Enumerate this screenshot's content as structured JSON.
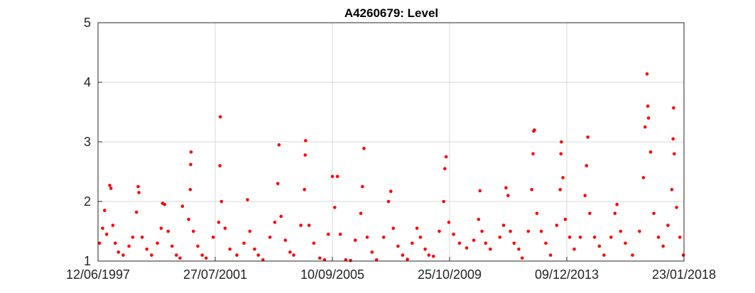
{
  "chart_data": {
    "type": "scatter",
    "title": "A4260679: Level",
    "xlabel": "",
    "ylabel": "",
    "marker_color": "#ff0000",
    "grid": true,
    "xlim": [
      "1997-06-12",
      "2018-01-23"
    ],
    "ylim": [
      1,
      5
    ],
    "xticks": [
      "12/06/1997",
      "27/07/2001",
      "10/09/2005",
      "25/10/2009",
      "09/12/2013",
      "23/01/2018"
    ],
    "xtick_dates": [
      "1997-06-12",
      "2001-07-27",
      "2005-09-10",
      "2009-10-25",
      "2013-12-09",
      "2018-01-23"
    ],
    "yticks": [
      1,
      2,
      3,
      4,
      5
    ],
    "series": [
      {
        "points": [
          [
            "1997-07-01",
            1.3
          ],
          [
            "1997-08-10",
            1.55
          ],
          [
            "1997-09-05",
            1.85
          ],
          [
            "1997-10-01",
            1.45
          ],
          [
            "1997-11-10",
            2.27
          ],
          [
            "1997-11-25",
            2.22
          ],
          [
            "1997-12-20",
            1.6
          ],
          [
            "1998-01-20",
            1.3
          ],
          [
            "1998-03-01",
            1.15
          ],
          [
            "1998-05-01",
            1.1
          ],
          [
            "1998-07-15",
            1.25
          ],
          [
            "1998-09-01",
            1.4
          ],
          [
            "1998-10-20",
            1.82
          ],
          [
            "1998-11-10",
            2.25
          ],
          [
            "1998-11-20",
            2.15
          ],
          [
            "1999-01-01",
            1.4
          ],
          [
            "1999-03-01",
            1.2
          ],
          [
            "1999-05-01",
            1.1
          ],
          [
            "1999-07-15",
            1.3
          ],
          [
            "1999-09-01",
            1.55
          ],
          [
            "1999-09-20",
            1.97
          ],
          [
            "1999-10-15",
            1.95
          ],
          [
            "1999-12-01",
            1.5
          ],
          [
            "2000-01-20",
            1.25
          ],
          [
            "2000-03-15",
            1.1
          ],
          [
            "2000-05-01",
            1.05
          ],
          [
            "2000-06-01",
            1.92
          ],
          [
            "2000-08-20",
            1.7
          ],
          [
            "2000-09-10",
            2.2
          ],
          [
            "2000-09-15",
            2.62
          ],
          [
            "2000-09-20",
            2.83
          ],
          [
            "2000-10-20",
            1.5
          ],
          [
            "2000-12-15",
            1.25
          ],
          [
            "2001-02-10",
            1.1
          ],
          [
            "2001-04-01",
            1.05
          ],
          [
            "2001-07-01",
            1.4
          ],
          [
            "2001-09-10",
            1.65
          ],
          [
            "2001-09-25",
            2.6
          ],
          [
            "2001-10-01",
            3.42
          ],
          [
            "2001-10-15",
            2.0
          ],
          [
            "2001-12-01",
            1.55
          ],
          [
            "2002-02-01",
            1.2
          ],
          [
            "2002-05-01",
            1.1
          ],
          [
            "2002-08-01",
            1.3
          ],
          [
            "2002-09-15",
            2.03
          ],
          [
            "2002-10-15",
            1.5
          ],
          [
            "2002-12-15",
            1.2
          ],
          [
            "2003-02-01",
            1.1
          ],
          [
            "2003-04-01",
            1.02
          ],
          [
            "2003-07-01",
            1.4
          ],
          [
            "2003-09-01",
            1.65
          ],
          [
            "2003-10-10",
            2.3
          ],
          [
            "2003-10-25",
            2.95
          ],
          [
            "2003-11-20",
            1.75
          ],
          [
            "2004-01-15",
            1.35
          ],
          [
            "2004-03-15",
            1.15
          ],
          [
            "2004-05-01",
            1.1
          ],
          [
            "2004-08-01",
            1.6
          ],
          [
            "2004-09-15",
            2.2
          ],
          [
            "2004-09-25",
            2.78
          ],
          [
            "2004-10-01",
            3.02
          ],
          [
            "2004-11-15",
            1.6
          ],
          [
            "2005-01-15",
            1.3
          ],
          [
            "2005-04-01",
            1.05
          ],
          [
            "2005-06-01",
            1.02
          ],
          [
            "2005-07-20",
            1.45
          ],
          [
            "2005-09-10",
            2.42
          ],
          [
            "2005-10-10",
            1.9
          ],
          [
            "2005-11-15",
            2.42
          ],
          [
            "2005-12-20",
            1.45
          ],
          [
            "2006-03-01",
            1.02
          ],
          [
            "2006-05-01",
            1.01
          ],
          [
            "2006-07-01",
            1.35
          ],
          [
            "2006-09-10",
            1.8
          ],
          [
            "2006-10-01",
            2.25
          ],
          [
            "2006-10-20",
            2.89
          ],
          [
            "2006-12-01",
            1.4
          ],
          [
            "2007-02-01",
            1.15
          ],
          [
            "2007-04-01",
            1.02
          ],
          [
            "2007-07-01",
            1.4
          ],
          [
            "2007-09-01",
            2.0
          ],
          [
            "2007-10-01",
            2.17
          ],
          [
            "2007-11-01",
            1.55
          ],
          [
            "2008-01-01",
            1.25
          ],
          [
            "2008-03-01",
            1.1
          ],
          [
            "2008-05-01",
            1.03
          ],
          [
            "2008-07-01",
            1.3
          ],
          [
            "2008-09-01",
            1.55
          ],
          [
            "2008-10-15",
            1.4
          ],
          [
            "2008-12-15",
            1.2
          ],
          [
            "2009-02-01",
            1.1
          ],
          [
            "2009-04-01",
            1.08
          ],
          [
            "2009-06-15",
            1.5
          ],
          [
            "2009-08-10",
            2.0
          ],
          [
            "2009-08-25",
            2.55
          ],
          [
            "2009-09-10",
            2.75
          ],
          [
            "2009-10-15",
            1.65
          ],
          [
            "2009-12-15",
            1.45
          ],
          [
            "2010-03-01",
            1.3
          ],
          [
            "2010-06-01",
            1.22
          ],
          [
            "2010-09-01",
            1.35
          ],
          [
            "2010-11-01",
            1.7
          ],
          [
            "2010-11-20",
            2.18
          ],
          [
            "2010-12-15",
            1.5
          ],
          [
            "2011-02-01",
            1.3
          ],
          [
            "2011-04-01",
            1.2
          ],
          [
            "2011-08-01",
            1.4
          ],
          [
            "2011-09-20",
            1.6
          ],
          [
            "2011-10-20",
            2.23
          ],
          [
            "2011-11-15",
            2.1
          ],
          [
            "2011-12-15",
            1.5
          ],
          [
            "2012-02-01",
            1.3
          ],
          [
            "2012-04-01",
            1.2
          ],
          [
            "2012-05-15",
            1.05
          ],
          [
            "2012-08-01",
            1.5
          ],
          [
            "2012-09-15",
            2.2
          ],
          [
            "2012-10-01",
            2.8
          ],
          [
            "2012-10-10",
            3.18
          ],
          [
            "2012-10-20",
            3.2
          ],
          [
            "2012-11-20",
            1.8
          ],
          [
            "2013-01-15",
            1.5
          ],
          [
            "2013-03-15",
            1.3
          ],
          [
            "2013-05-15",
            1.1
          ],
          [
            "2013-08-01",
            1.6
          ],
          [
            "2013-09-15",
            2.2
          ],
          [
            "2013-09-25",
            2.8
          ],
          [
            "2013-10-01",
            3.0
          ],
          [
            "2013-10-20",
            2.4
          ],
          [
            "2013-11-20",
            1.7
          ],
          [
            "2014-01-15",
            1.4
          ],
          [
            "2014-03-15",
            1.2
          ],
          [
            "2014-06-01",
            1.4
          ],
          [
            "2014-08-01",
            2.1
          ],
          [
            "2014-08-20",
            2.6
          ],
          [
            "2014-09-05",
            3.08
          ],
          [
            "2014-10-01",
            1.8
          ],
          [
            "2014-12-01",
            1.4
          ],
          [
            "2015-02-01",
            1.25
          ],
          [
            "2015-04-01",
            1.1
          ],
          [
            "2015-07-01",
            1.4
          ],
          [
            "2015-08-20",
            1.8
          ],
          [
            "2015-09-15",
            1.95
          ],
          [
            "2015-11-01",
            1.5
          ],
          [
            "2016-01-01",
            1.3
          ],
          [
            "2016-04-01",
            1.1
          ],
          [
            "2016-07-01",
            1.5
          ],
          [
            "2016-08-20",
            2.4
          ],
          [
            "2016-09-10",
            3.25
          ],
          [
            "2016-10-05",
            4.14
          ],
          [
            "2016-10-15",
            3.6
          ],
          [
            "2016-10-25",
            3.4
          ],
          [
            "2016-11-20",
            2.83
          ],
          [
            "2017-01-01",
            1.8
          ],
          [
            "2017-03-01",
            1.4
          ],
          [
            "2017-05-01",
            1.25
          ],
          [
            "2017-07-01",
            1.6
          ],
          [
            "2017-08-20",
            2.2
          ],
          [
            "2017-09-05",
            3.05
          ],
          [
            "2017-09-12",
            3.57
          ],
          [
            "2017-09-20",
            2.8
          ],
          [
            "2017-10-20",
            1.9
          ],
          [
            "2017-12-01",
            1.4
          ],
          [
            "2018-01-15",
            1.1
          ]
        ]
      }
    ]
  }
}
